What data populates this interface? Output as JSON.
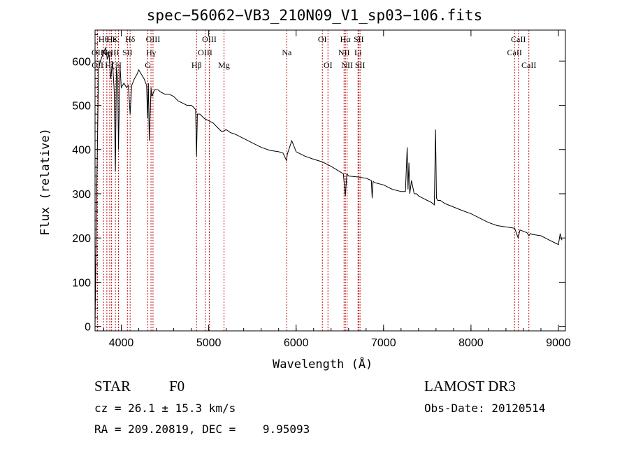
{
  "chart_data": {
    "type": "line",
    "title": "spec−56062−VB3_210N09_V1_sp03−106.fits",
    "xlabel": "Wavelength (Å)",
    "ylabel": "Flux (relative)",
    "xlim": [
      3700,
      9080
    ],
    "ylim": [
      -10,
      670
    ],
    "xticks": [
      4000,
      5000,
      6000,
      7000,
      8000,
      9000
    ],
    "yticks": [
      0,
      100,
      200,
      300,
      400,
      500,
      600
    ],
    "grid": false,
    "line_color": "#000000",
    "marker_color": "#c01010",
    "series": [
      {
        "name": "flux",
        "x": [
          3700,
          3720,
          3740,
          3760,
          3780,
          3800,
          3820,
          3840,
          3860,
          3880,
          3900,
          3920,
          3933,
          3945,
          3960,
          3968,
          3985,
          4000,
          4030,
          4060,
          4080,
          4101,
          4120,
          4150,
          4180,
          4200,
          4230,
          4260,
          4290,
          4300,
          4310,
          4320,
          4340,
          4350,
          4380,
          4420,
          4450,
          4500,
          4550,
          4600,
          4650,
          4700,
          4750,
          4800,
          4830,
          4850,
          4861,
          4870,
          4900,
          4950,
          5000,
          5050,
          5100,
          5150,
          5200,
          5250,
          5300,
          5400,
          5500,
          5600,
          5700,
          5800,
          5850,
          5890,
          5900,
          5950,
          5980,
          6000,
          6050,
          6100,
          6200,
          6300,
          6400,
          6500,
          6540,
          6563,
          6580,
          6600,
          6700,
          6800,
          6860,
          6870,
          6880,
          6900,
          7000,
          7100,
          7200,
          7250,
          7270,
          7280,
          7290,
          7300,
          7320,
          7350,
          7380,
          7400,
          7450,
          7500,
          7550,
          7580,
          7595,
          7605,
          7620,
          7650,
          7700,
          7800,
          7900,
          8000,
          8100,
          8200,
          8300,
          8400,
          8500,
          8540,
          8560,
          8600,
          8640,
          8662,
          8680,
          8700,
          8800,
          8900,
          8950,
          9000,
          9020,
          9040
        ],
        "y": [
          0,
          320,
          580,
          600,
          610,
          620,
          630,
          605,
          615,
          560,
          600,
          530,
          350,
          585,
          560,
          400,
          590,
          540,
          550,
          540,
          545,
          480,
          545,
          560,
          570,
          580,
          570,
          560,
          545,
          470,
          550,
          420,
          540,
          520,
          535,
          535,
          530,
          525,
          525,
          520,
          510,
          505,
          500,
          500,
          495,
          490,
          385,
          480,
          480,
          470,
          465,
          460,
          450,
          440,
          445,
          438,
          435,
          425,
          415,
          405,
          398,
          395,
          392,
          375,
          390,
          420,
          405,
          395,
          390,
          385,
          378,
          372,
          362,
          350,
          345,
          295,
          345,
          340,
          338,
          335,
          330,
          290,
          328,
          325,
          320,
          310,
          305,
          305,
          405,
          310,
          370,
          300,
          330,
          300,
          300,
          295,
          290,
          285,
          280,
          275,
          445,
          290,
          285,
          285,
          278,
          270,
          262,
          255,
          245,
          235,
          228,
          225,
          222,
          200,
          218,
          215,
          212,
          205,
          210,
          208,
          205,
          195,
          190,
          185,
          210,
          195
        ],
        "style": "line"
      }
    ],
    "annotations": [
      {
        "label": "Hε",
        "x": 3889,
        "row": 0
      },
      {
        "label": "OII",
        "x": 3727,
        "row": 1
      },
      {
        "label": "OII",
        "x": 3729,
        "row": 2
      },
      {
        "label": "Hη",
        "x": 3835,
        "row": 1
      },
      {
        "label": "Hζ",
        "x": 3868,
        "row": 2
      },
      {
        "label": "Hθ",
        "x": 3797,
        "row": 0
      },
      {
        "label": "NeIII",
        "x": 3869,
        "row": 1
      },
      {
        "label": "K",
        "x": 3933,
        "row": 0
      },
      {
        "label": "SII",
        "x": 4070,
        "row": 1
      },
      {
        "label": "H",
        "x": 3968,
        "row": 2
      },
      {
        "label": "Hδ",
        "x": 4101,
        "row": 0
      },
      {
        "label": "OIII",
        "x": 4363,
        "row": 0
      },
      {
        "label": "Hγ",
        "x": 4340,
        "row": 1
      },
      {
        "label": "G",
        "x": 4304,
        "row": 2
      },
      {
        "label": "OIII",
        "x": 5007,
        "row": 0
      },
      {
        "label": "OIII",
        "x": 4959,
        "row": 1
      },
      {
        "label": "Hβ",
        "x": 4861,
        "row": 2
      },
      {
        "label": "Mg",
        "x": 5175,
        "row": 2
      },
      {
        "label": "Na",
        "x": 5893,
        "row": 1
      },
      {
        "label": "OI",
        "x": 6300,
        "row": 0
      },
      {
        "label": "OI",
        "x": 6364,
        "row": 2
      },
      {
        "label": "Hα",
        "x": 6563,
        "row": 0
      },
      {
        "label": "NII",
        "x": 6548,
        "row": 1
      },
      {
        "label": "NII",
        "x": 6583,
        "row": 2
      },
      {
        "label": "SII",
        "x": 6716,
        "row": 0
      },
      {
        "label": "Li",
        "x": 6708,
        "row": 1
      },
      {
        "label": "SII",
        "x": 6731,
        "row": 2
      },
      {
        "label": "CaII",
        "x": 8542,
        "row": 0
      },
      {
        "label": "CaII",
        "x": 8498,
        "row": 1
      },
      {
        "label": "CaII",
        "x": 8662,
        "row": 2
      }
    ]
  },
  "footer": {
    "object_type": "STAR",
    "subclass": "F0",
    "survey": "LAMOST DR3",
    "cz": "cz = 26.1 ± 15.3 km/s",
    "obs_date": "Obs-Date: 20120514",
    "radec": "RA = 209.20819, DEC =    9.95093"
  }
}
